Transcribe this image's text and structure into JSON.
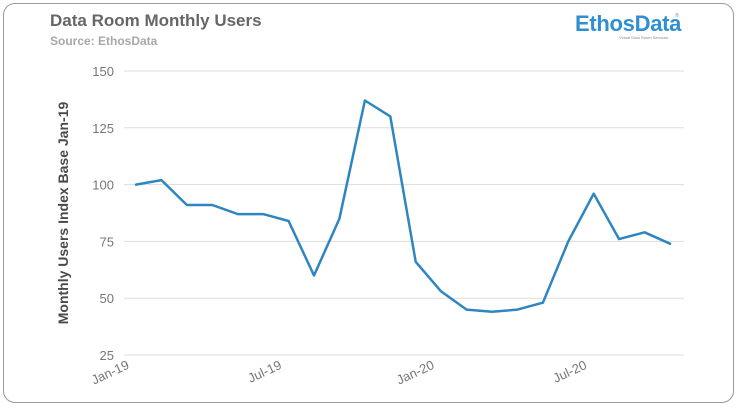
{
  "header": {
    "title": "Data Room Monthly Users",
    "subtitle": "Source: EthosData"
  },
  "logo": {
    "word": "EthosData",
    "tagline": "Virtual Data Room Services",
    "reg": "®",
    "color": "#2f8fd0"
  },
  "chart_data": {
    "type": "line",
    "title": "Data Room Monthly Users",
    "subtitle": "Source: EthosData",
    "xlabel": "",
    "ylabel": "Monthly Users Index Base Jan-19",
    "ylim": [
      25,
      150
    ],
    "yticks": [
      150,
      125,
      100,
      75,
      50,
      25
    ],
    "x": [
      "Jan-19",
      "Feb-19",
      "Mar-19",
      "Apr-19",
      "May-19",
      "Jun-19",
      "Jul-19",
      "Aug-19",
      "Sep-19",
      "Oct-19",
      "Nov-19",
      "Dec-19",
      "Jan-20",
      "Feb-20",
      "Mar-20",
      "Apr-20",
      "May-20",
      "Jun-20",
      "Jul-20",
      "Aug-20",
      "Sep-20",
      "Oct-20"
    ],
    "xtick_labels": [
      "Jan-19",
      "Jul-19",
      "Jan-20",
      "Jul-20"
    ],
    "series": [
      {
        "values": [
          100,
          102,
          91,
          91,
          87,
          87,
          84,
          60,
          85,
          137,
          130,
          66,
          53,
          45,
          44,
          45,
          48,
          75,
          96,
          76,
          79,
          74
        ],
        "color": "#2e86c1"
      }
    ],
    "grid": true,
    "legend": "none"
  }
}
